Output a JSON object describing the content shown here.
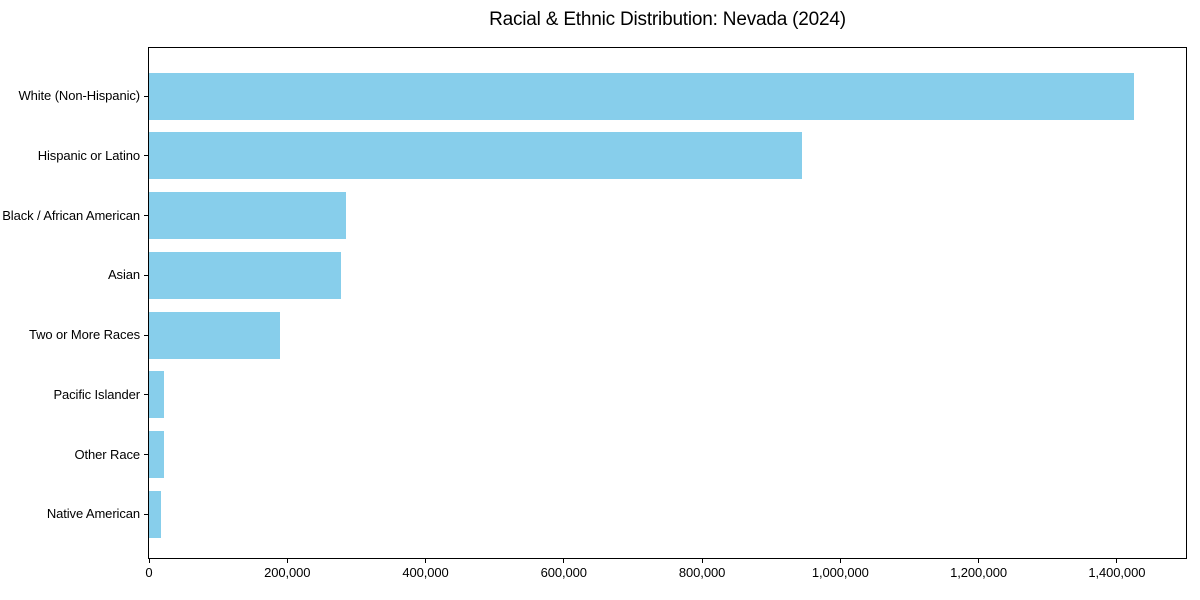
{
  "page": {
    "background": "#ffffff",
    "text_color": "#000000"
  },
  "chart_data": {
    "type": "bar",
    "orientation": "horizontal",
    "title": "Racial & Ethnic Distribution: Nevada (2024)",
    "xlabel": "",
    "ylabel": "",
    "categories": [
      "White (Non-Hispanic)",
      "Hispanic or Latino",
      "Black / African American",
      "Asian",
      "Two or More Races",
      "Pacific Islander",
      "Other Race",
      "Native American"
    ],
    "values": [
      1425000,
      945000,
      285000,
      278000,
      190000,
      22000,
      21000,
      18000
    ],
    "xlim": [
      0,
      1500000
    ],
    "x_ticks": [
      0,
      200000,
      400000,
      600000,
      800000,
      1000000,
      1200000,
      1400000
    ],
    "x_tick_labels": [
      "0",
      "200,000",
      "400,000",
      "600,000",
      "800,000",
      "1,000,000",
      "1,200,000",
      "1,400,000"
    ],
    "bar_color": "#87ceeb",
    "spine_color": "#000000",
    "grid": false,
    "legend": false,
    "category_order": "top-to-bottom"
  }
}
